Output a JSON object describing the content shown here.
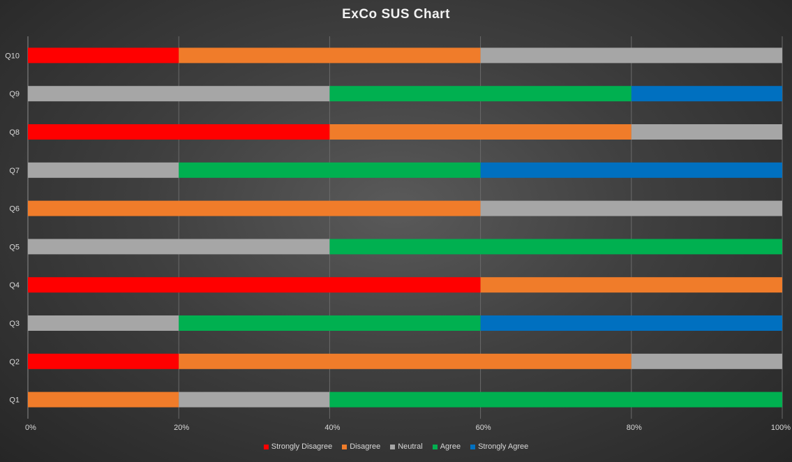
{
  "chart_data": {
    "type": "bar",
    "orientation": "horizontal",
    "stacked": "percent",
    "title": "ExCo SUS Chart",
    "categories": [
      "Q1",
      "Q2",
      "Q3",
      "Q4",
      "Q5",
      "Q6",
      "Q7",
      "Q8",
      "Q9",
      "Q10"
    ],
    "series": [
      {
        "name": "Strongly Disagree",
        "color": "#ff0000",
        "values": [
          0,
          20,
          0,
          60,
          0,
          0,
          0,
          40,
          0,
          20
        ]
      },
      {
        "name": "Disagree",
        "color": "#f07c2a",
        "values": [
          20,
          60,
          0,
          40,
          0,
          60,
          0,
          40,
          0,
          40
        ]
      },
      {
        "name": "Neutral",
        "color": "#a6a6a6",
        "values": [
          20,
          20,
          20,
          0,
          40,
          40,
          20,
          20,
          40,
          40
        ]
      },
      {
        "name": "Agree",
        "color": "#00b050",
        "values": [
          60,
          0,
          40,
          0,
          60,
          0,
          40,
          0,
          40,
          0
        ]
      },
      {
        "name": "Strongly Agree",
        "color": "#0070c0",
        "values": [
          0,
          0,
          40,
          0,
          0,
          0,
          40,
          0,
          20,
          0
        ]
      }
    ],
    "xticks": [
      "0%",
      "20%",
      "40%",
      "60%",
      "80%",
      "100%"
    ],
    "xlim": [
      0,
      100
    ],
    "grid": true,
    "legend": "bottom",
    "xlabel": "",
    "ylabel": ""
  }
}
